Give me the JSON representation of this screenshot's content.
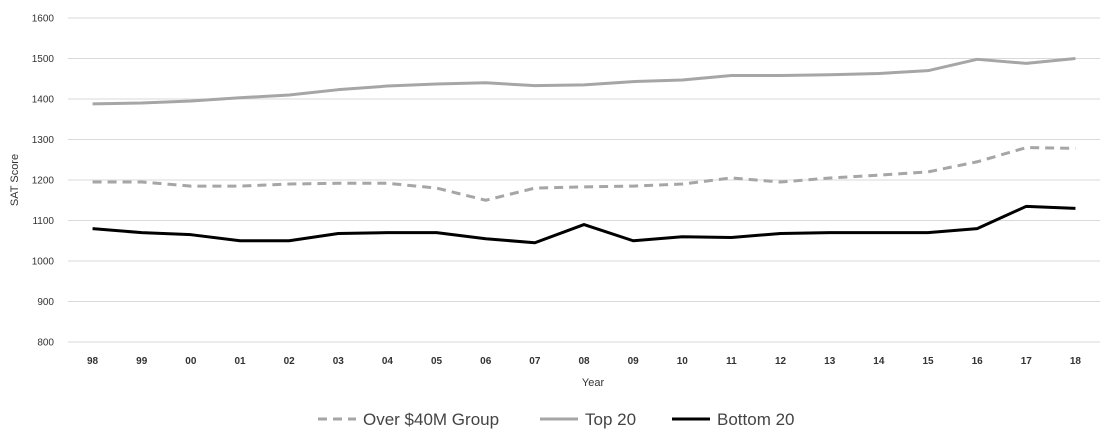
{
  "chart_data": {
    "type": "line",
    "title": "",
    "xlabel": "Year",
    "ylabel": "SAT Score",
    "categories": [
      "98",
      "99",
      "00",
      "01",
      "02",
      "03",
      "04",
      "05",
      "06",
      "07",
      "08",
      "09",
      "10",
      "11",
      "12",
      "13",
      "14",
      "15",
      "16",
      "17",
      "18"
    ],
    "ylim": [
      800,
      1600
    ],
    "yticks": [
      800,
      900,
      1000,
      1100,
      1200,
      1300,
      1400,
      1500,
      1600
    ],
    "grid": true,
    "legend_position": "bottom",
    "series": [
      {
        "name": "Over $40M Group",
        "color": "#a6a6a6",
        "dash": "dashed",
        "values": [
          1195,
          1195,
          1185,
          1185,
          1190,
          1192,
          1192,
          1180,
          1150,
          1180,
          1183,
          1185,
          1190,
          1205,
          1195,
          1205,
          1212,
          1220,
          1245,
          1280,
          1278
        ]
      },
      {
        "name": "Top 20",
        "color": "#a6a6a6",
        "dash": "solid",
        "values": [
          1388,
          1390,
          1395,
          1403,
          1410,
          1423,
          1432,
          1437,
          1440,
          1433,
          1435,
          1443,
          1447,
          1458,
          1458,
          1460,
          1463,
          1470,
          1498,
          1488,
          1500
        ]
      },
      {
        "name": "Bottom 20",
        "color": "#000000",
        "dash": "solid",
        "values": [
          1080,
          1070,
          1065,
          1050,
          1050,
          1068,
          1070,
          1070,
          1055,
          1045,
          1090,
          1050,
          1060,
          1058,
          1068,
          1070,
          1070,
          1070,
          1080,
          1135,
          1130
        ]
      }
    ]
  }
}
